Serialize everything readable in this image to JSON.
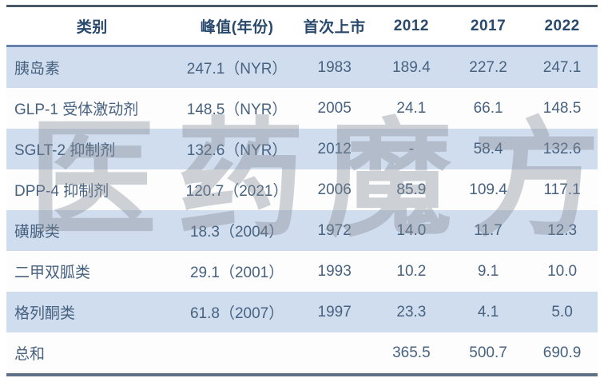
{
  "chart_data": {
    "type": "table",
    "columns": [
      "类别",
      "峰值(年份)",
      "首次上市",
      "2012",
      "2017",
      "2022"
    ],
    "rows": [
      [
        "胰岛素",
        "247.1（NYR）",
        "1983",
        "189.4",
        "227.2",
        "247.1"
      ],
      [
        "GLP-1 受体激动剂",
        "148.5（NYR）",
        "2005",
        "24.1",
        "66.1",
        "148.5"
      ],
      [
        "SGLT-2 抑制剂",
        "132.6（NYR）",
        "2012",
        "-",
        "58.4",
        "132.6"
      ],
      [
        "DPP-4 抑制剂",
        "120.7（2021）",
        "2006",
        "85.9",
        "109.4",
        "117.1"
      ],
      [
        "磺脲类",
        "18.3（2004）",
        "1972",
        "14.0",
        "11.7",
        "12.3"
      ],
      [
        "二甲双胍类",
        "29.1（2001）",
        "1993",
        "10.2",
        "9.1",
        "10.0"
      ],
      [
        "格列酮类",
        "61.8（2007）",
        "1997",
        "23.3",
        "4.1",
        "5.0"
      ],
      [
        "总和",
        "",
        "",
        "365.5",
        "500.7",
        "690.9"
      ]
    ]
  },
  "watermark": {
    "text": "医药魔方"
  },
  "colors": {
    "header_text": "#29496c",
    "body_text": "#47627f",
    "row_blue": "#d0ddef",
    "row_white": "#fdfdfe",
    "top_border": "#4a5968",
    "header_underline": "#6681ab",
    "bottom_border": "#5e7187",
    "watermark_gray": "#848c96"
  }
}
